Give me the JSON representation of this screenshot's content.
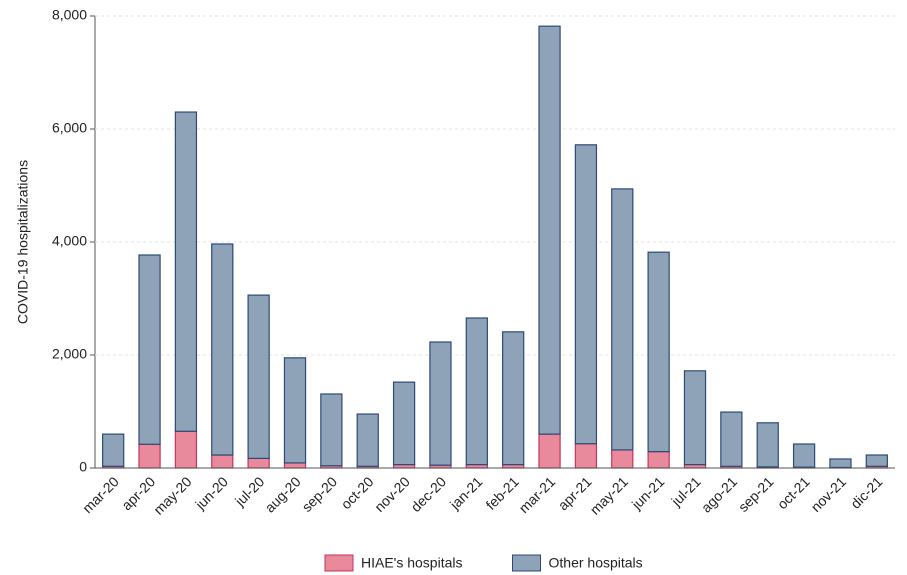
{
  "chart_data": {
    "type": "stacked_bar",
    "y_label": "COVID-19 hospitalizations",
    "categories": [
      "mar-20",
      "apr-20",
      "may-20",
      "jun-20",
      "jul-20",
      "aug-20",
      "sep-20",
      "oct-20",
      "nov-20",
      "dec-20",
      "jan-21",
      "feb-21",
      "mar-21",
      "apr-21",
      "may-21",
      "jun-21",
      "jul-21",
      "ago-21",
      "sep-21",
      "oct-21",
      "nov-21",
      "dic-21"
    ],
    "series": [
      {
        "name": "HIAE's hospitals",
        "color": "#e8899c",
        "edgecolor": "#c6345a",
        "values": [
          30,
          420,
          650,
          230,
          170,
          90,
          40,
          30,
          60,
          50,
          60,
          60,
          600,
          430,
          320,
          290,
          60,
          30,
          20,
          15,
          10,
          30
        ]
      },
      {
        "name": "Other hospitals",
        "color": "#8ea3b7",
        "edgecolor": "#2c4a78",
        "values": [
          570,
          3350,
          5650,
          3735,
          2890,
          1860,
          1270,
          925,
          1460,
          2180,
          2595,
          2350,
          7220,
          5290,
          4620,
          3530,
          1660,
          960,
          780,
          410,
          150,
          200
        ]
      }
    ],
    "ylim": [
      0,
      8000
    ],
    "yticks": [
      0,
      {
        "value": 2000,
        "label": "2,000"
      },
      {
        "value": 4000,
        "label": "4,000"
      },
      {
        "value": 6000,
        "label": "6,000"
      },
      {
        "value": 8000,
        "label": "8,000"
      }
    ],
    "grid": true,
    "legend": "bottom"
  }
}
